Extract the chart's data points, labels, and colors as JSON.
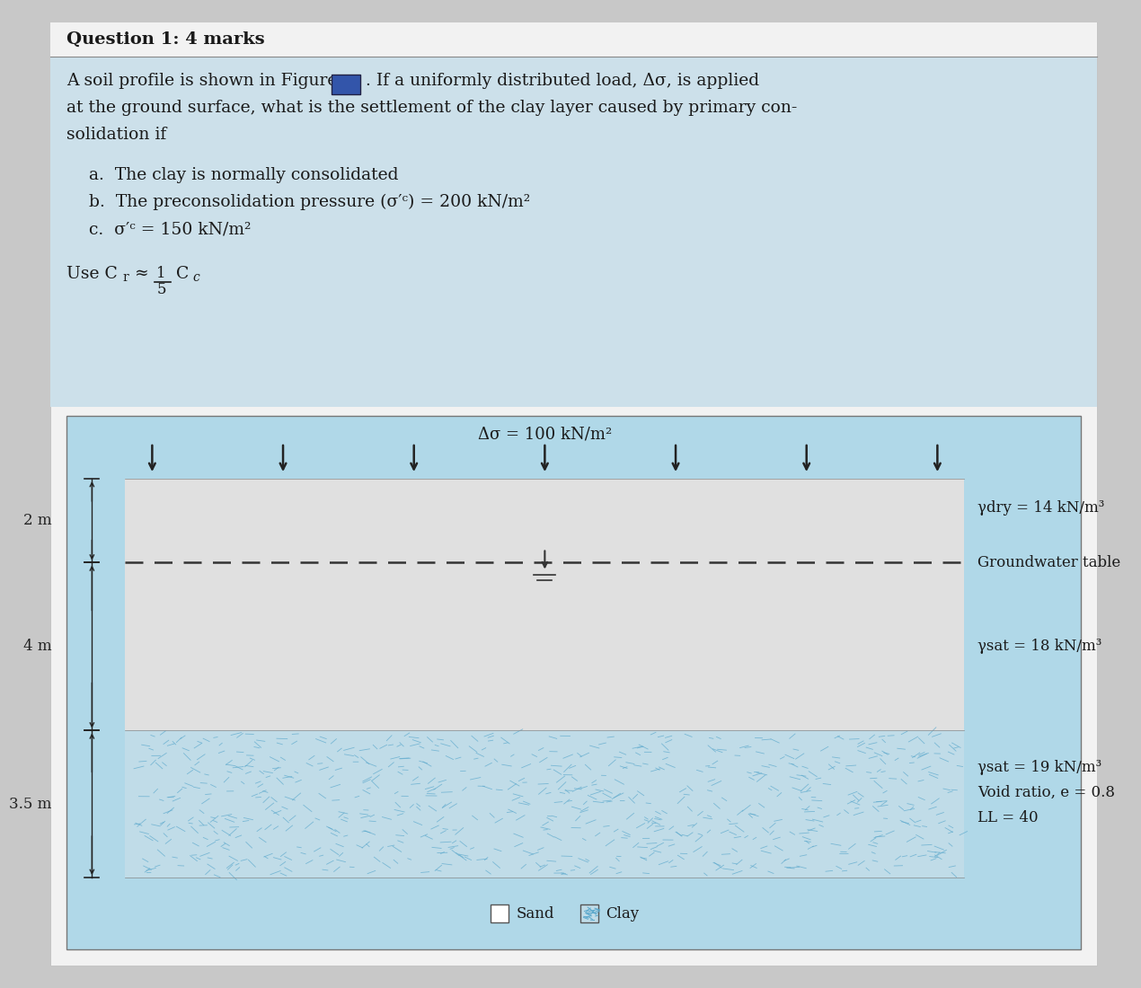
{
  "title": "Question 1: 4 marks",
  "outer_bg": "#c8c8c8",
  "page_bg": "#f0f0f0",
  "text_section_bg": "#cce0ea",
  "diagram_outer_bg": "#a8d4e0",
  "sand_color": "#e8e8e8",
  "clay_bg_color": "#c0dce8",
  "clay_pattern_color": "#5ba8cc",
  "load_label": "Δσ = 100 kN/m²",
  "layer1_label": "2 m",
  "layer2_label": "4 m",
  "layer3_label": "3.5 m",
  "gw_label": "Groundwater table",
  "gamma_dry_label": "γdry = 14 kN/m³",
  "gamma_sat1_label": "γsat = 18 kN/m³",
  "gamma_sat2_label": "γsat = 19 kN/m³",
  "void_ratio_label": "Void ratio, e = 0.8",
  "LL_label": "LL = 40",
  "legend_sand": "Sand",
  "legend_clay": "Clay",
  "text_color": "#1a1a1a",
  "dark_color": "#2a2a2a"
}
